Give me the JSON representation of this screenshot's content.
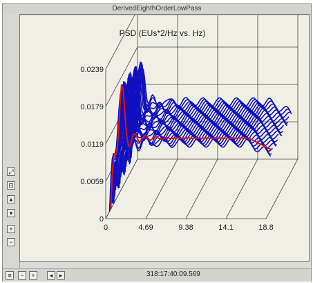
{
  "window": {
    "title": "DerivedEighthOrderLowPass"
  },
  "toolbar_left": {
    "buttons": [
      {
        "name": "restore-button",
        "glyph": "⤢"
      },
      {
        "name": "zoom-button",
        "glyph": "⊡"
      },
      {
        "name": "up-button",
        "glyph": "▴"
      },
      {
        "name": "down-button",
        "glyph": "▾"
      },
      {
        "name": "plus-button",
        "glyph": "+"
      },
      {
        "name": "minus-button",
        "glyph": "−"
      }
    ]
  },
  "toolbar_bottom": {
    "buttons": [
      {
        "name": "menu-button",
        "glyph": "≡"
      },
      {
        "name": "minus-button",
        "glyph": "−"
      },
      {
        "name": "plus-button",
        "glyph": "+"
      },
      {
        "name": "prev-button",
        "glyph": "◂"
      },
      {
        "name": "next-button",
        "glyph": "▸"
      }
    ]
  },
  "status": {
    "timestamp": "318:17:40:09.569"
  },
  "colors": {
    "plot_bg": "#efefe6",
    "grid": "#444444",
    "waterfall": "#1010c0",
    "highlight": "#e01010"
  },
  "chart_data": {
    "type": "line",
    "title": "PSD  (EUs*2/Hz vs. Hz)",
    "x_tick_labels": [
      "0",
      "4.69",
      "9.38",
      "14.1",
      "18.8"
    ],
    "y_tick_labels": [
      "0",
      "0.0059",
      "0.0119",
      "0.0179",
      "0.0239"
    ],
    "xlim": [
      0,
      18.8
    ],
    "ylim": [
      0,
      0.0239
    ],
    "grid": true
  }
}
